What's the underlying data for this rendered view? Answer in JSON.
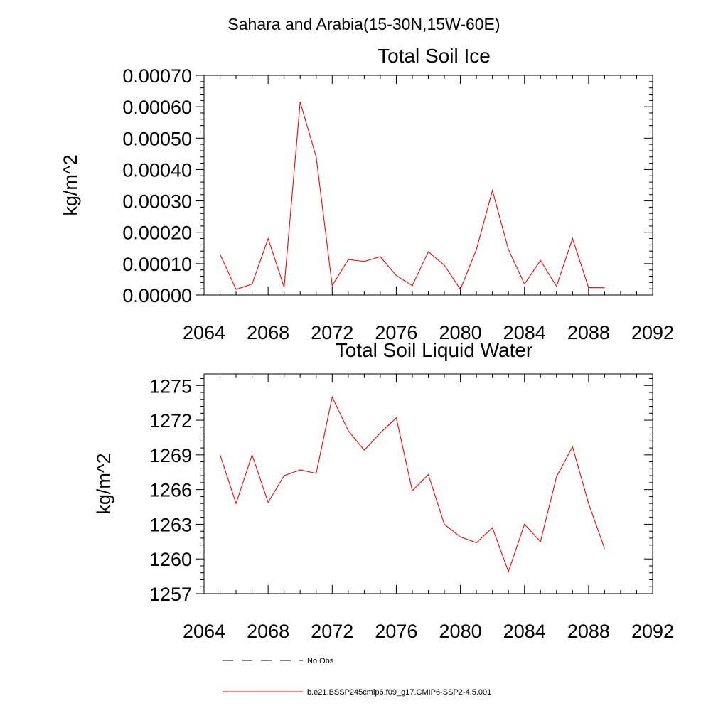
{
  "title": "Sahara and Arabia(15-30N,15W-60E)",
  "chart_data": [
    {
      "type": "line",
      "title": "Total Soil Ice",
      "ylabel": "kg/m^2",
      "xlabel": "",
      "xlim": [
        2064,
        2092
      ],
      "ylim": [
        0,
        0.0007
      ],
      "xticks": [
        2064,
        2068,
        2072,
        2076,
        2080,
        2084,
        2088,
        2092
      ],
      "xtick_labels": [
        "2064",
        "2068",
        "2072",
        "2076",
        "2080",
        "2084",
        "2088",
        "2092"
      ],
      "yticks": [
        0,
        0.0001,
        0.0002,
        0.0003,
        0.0004,
        0.0005,
        0.0006,
        0.0007
      ],
      "ytick_labels": [
        "0.00000",
        "0.00010",
        "0.00020",
        "0.00030",
        "0.00040",
        "0.00050",
        "0.00060",
        "0.00070"
      ],
      "series": [
        {
          "color": "#ff0000",
          "x": [
            2065,
            2066,
            2067,
            2068,
            2069,
            2070,
            2071,
            2072,
            2073,
            2074,
            2075,
            2076,
            2077,
            2078,
            2079,
            2080,
            2081,
            2082,
            2083,
            2084,
            2085,
            2086,
            2087,
            2088,
            2089
          ],
          "y": [
            0.00013,
            1.8e-05,
            3.5e-05,
            0.00018,
            2.5e-05,
            0.000615,
            0.00044,
            3e-05,
            0.000113,
            0.000107,
            0.000122,
            6.2e-05,
            3e-05,
            0.000138,
            9.5e-05,
            1.8e-05,
            0.000145,
            0.000333,
            0.000145,
            3.5e-05,
            0.00011,
            2.8e-05,
            0.00018,
            2.4e-05,
            2.3e-05
          ]
        }
      ]
    },
    {
      "type": "line",
      "title": "Total Soil Liquid Water",
      "ylabel": "kg/m^2",
      "xlabel": "",
      "xlim": [
        2064,
        2092
      ],
      "ylim": [
        1257,
        1276
      ],
      "xticks": [
        2064,
        2068,
        2072,
        2076,
        2080,
        2084,
        2088,
        2092
      ],
      "xtick_labels": [
        "2064",
        "2068",
        "2072",
        "2076",
        "2080",
        "2084",
        "2088",
        "2092"
      ],
      "yticks": [
        1257,
        1260,
        1263,
        1266,
        1269,
        1272,
        1275
      ],
      "ytick_labels": [
        "1257",
        "1260",
        "1263",
        "1266",
        "1269",
        "1272",
        "1275"
      ],
      "series": [
        {
          "color": "#ff0000",
          "x": [
            2065,
            2066,
            2067,
            2068,
            2069,
            2070,
            2071,
            2072,
            2073,
            2074,
            2075,
            2076,
            2077,
            2078,
            2079,
            2080,
            2081,
            2082,
            2083,
            2084,
            2085,
            2086,
            2087,
            2088,
            2089
          ],
          "y": [
            1269.0,
            1264.8,
            1269.0,
            1264.9,
            1267.2,
            1267.7,
            1267.4,
            1274.0,
            1271.1,
            1269.4,
            1270.9,
            1272.2,
            1265.9,
            1267.3,
            1263.0,
            1261.9,
            1261.4,
            1262.7,
            1258.9,
            1263.0,
            1261.5,
            1267.1,
            1269.7,
            1264.8,
            1260.9
          ]
        }
      ]
    }
  ],
  "legend": {
    "placement": "bottom",
    "entries": [
      {
        "label": "No Obs",
        "color": "#000000",
        "dash": "dashed"
      },
      {
        "label": "b.e21.BSSP245cmip6.f09_g17.CMIP6-SSP2-4.5.001",
        "color": "#ff0000",
        "dash": "solid"
      }
    ]
  }
}
